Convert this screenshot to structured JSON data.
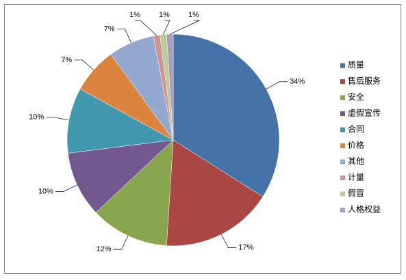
{
  "chart_data": {
    "type": "pie",
    "categories": [
      "质量",
      "售后服务",
      "安全",
      "虚假宣传",
      "合同",
      "价格",
      "其他",
      "计量",
      "假冒",
      "人格权益"
    ],
    "values": [
      34,
      17,
      12,
      10,
      10,
      7,
      7,
      1,
      1,
      1
    ],
    "value_labels": [
      "34%",
      "17%",
      "12%",
      "10%",
      "10%",
      "7%",
      "7%",
      "1%",
      "1%",
      "1%"
    ],
    "colors": [
      "#4572A7",
      "#AA4643",
      "#89A54E",
      "#71588F",
      "#4198AF",
      "#DB843D",
      "#93A9CF",
      "#D19392",
      "#B9CD96",
      "#A99BBD"
    ],
    "legend": "right"
  }
}
